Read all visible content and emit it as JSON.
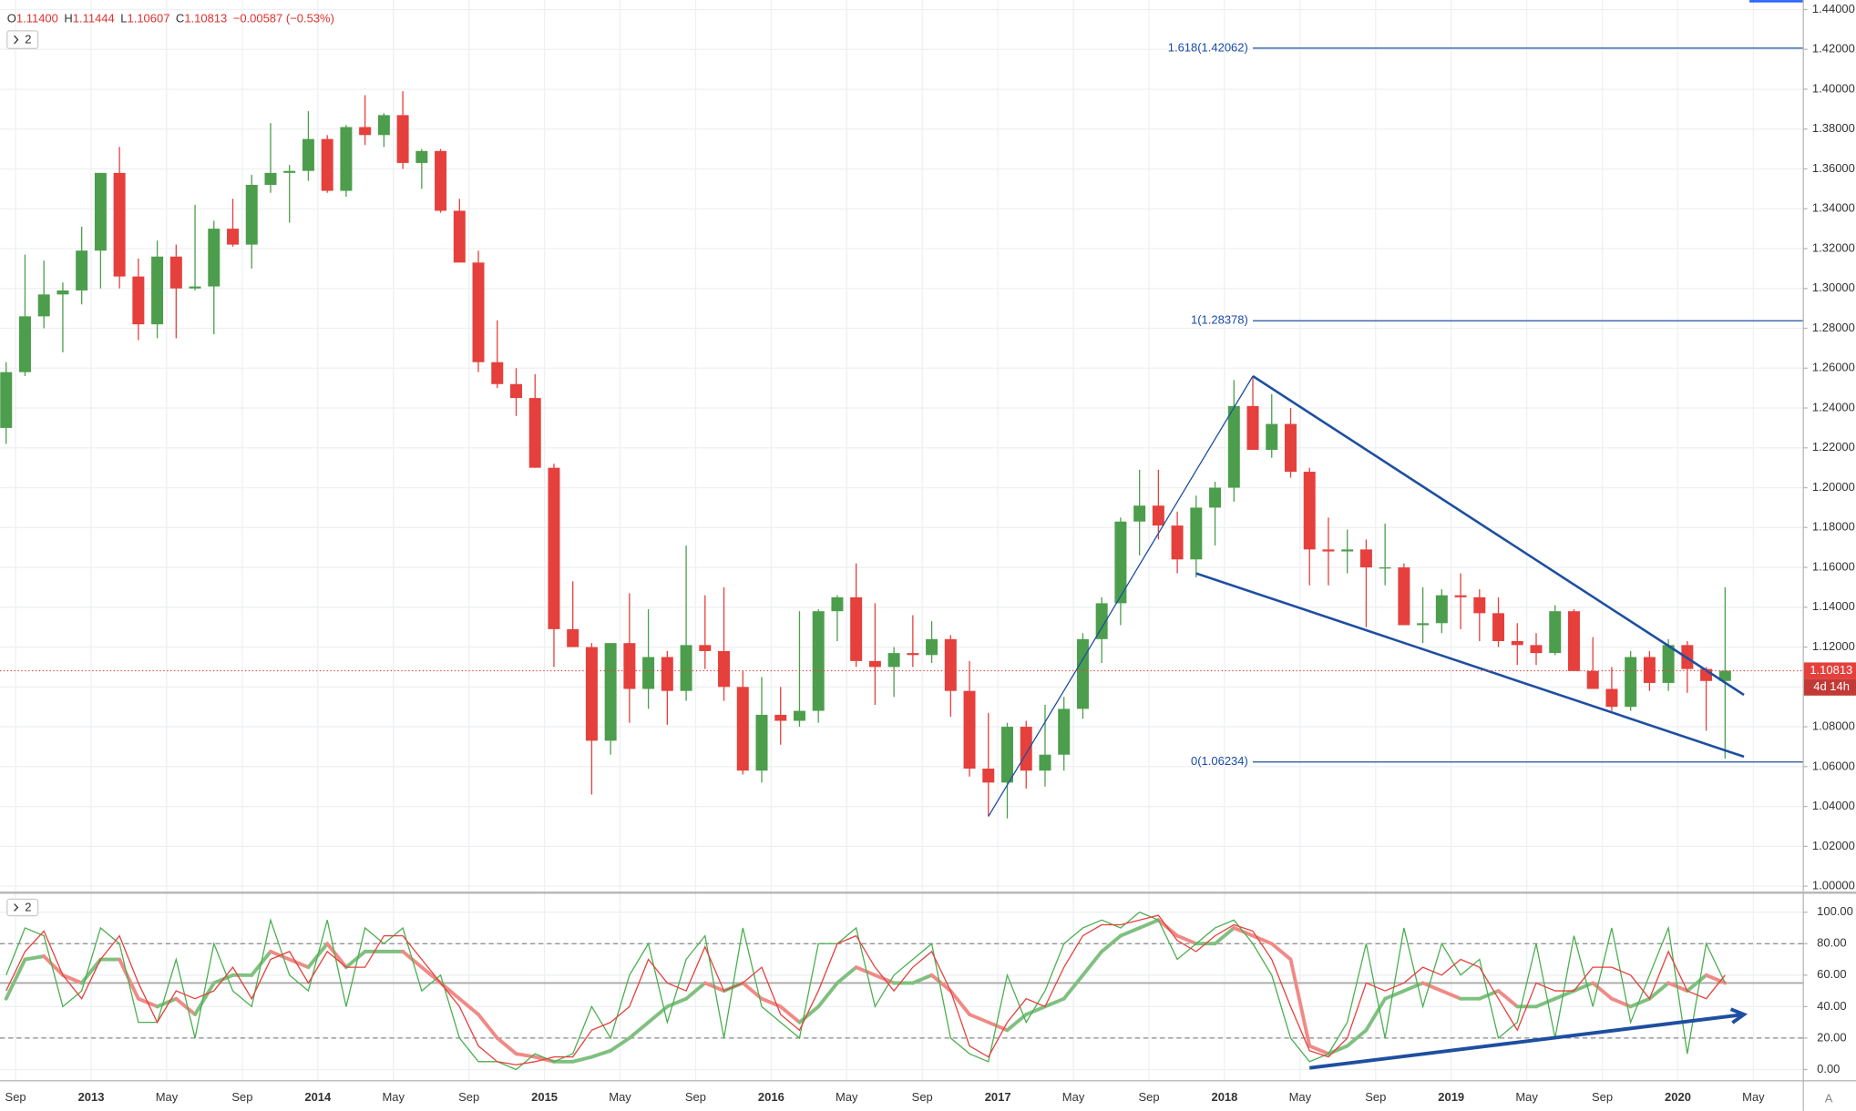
{
  "chart_data": [
    {
      "type": "candlestick",
      "header": [
        [
          "O",
          "1.11400"
        ],
        [
          "H",
          "1.11444"
        ],
        [
          "L",
          "1.10607"
        ],
        [
          "C",
          "1.10813"
        ]
      ],
      "header_change": "−0.00587 (−0.53%)",
      "pane_label": "2",
      "x": [
        "2012-08",
        "2012-09",
        "2012-10",
        "2012-11",
        "2012-12",
        "2013-01",
        "2013-02",
        "2013-03",
        "2013-04",
        "2013-05",
        "2013-06",
        "2013-07",
        "2013-08",
        "2013-09",
        "2013-10",
        "2013-11",
        "2013-12",
        "2014-01",
        "2014-02",
        "2014-03",
        "2014-04",
        "2014-05",
        "2014-06",
        "2014-07",
        "2014-08",
        "2014-09",
        "2014-10",
        "2014-11",
        "2014-12",
        "2015-01",
        "2015-02",
        "2015-03",
        "2015-04",
        "2015-05",
        "2015-06",
        "2015-07",
        "2015-08",
        "2015-09",
        "2015-10",
        "2015-11",
        "2015-12",
        "2016-01",
        "2016-02",
        "2016-03",
        "2016-04",
        "2016-05",
        "2016-06",
        "2016-07",
        "2016-08",
        "2016-09",
        "2016-10",
        "2016-11",
        "2016-12",
        "2017-01",
        "2017-02",
        "2017-03",
        "2017-04",
        "2017-05",
        "2017-06",
        "2017-07",
        "2017-08",
        "2017-09",
        "2017-10",
        "2017-11",
        "2017-12",
        "2018-01",
        "2018-02",
        "2018-03",
        "2018-04",
        "2018-05",
        "2018-06",
        "2018-07",
        "2018-08",
        "2018-09",
        "2018-10",
        "2018-11",
        "2018-12",
        "2019-01",
        "2019-02",
        "2019-03",
        "2019-04",
        "2019-05",
        "2019-06",
        "2019-07",
        "2019-08",
        "2019-09",
        "2019-10",
        "2019-11",
        "2019-12",
        "2020-01",
        "2020-02",
        "2020-03"
      ],
      "open": [
        1.23,
        1.258,
        1.286,
        1.297,
        1.299,
        1.319,
        1.358,
        1.306,
        1.282,
        1.316,
        1.3,
        1.301,
        1.33,
        1.322,
        1.352,
        1.358,
        1.359,
        1.375,
        1.349,
        1.381,
        1.377,
        1.387,
        1.363,
        1.369,
        1.339,
        1.313,
        1.263,
        1.252,
        1.245,
        1.21,
        1.129,
        1.12,
        1.073,
        1.122,
        1.099,
        1.115,
        1.098,
        1.121,
        1.118,
        1.1,
        1.058,
        1.086,
        1.083,
        1.088,
        1.138,
        1.145,
        1.113,
        1.11,
        1.117,
        1.116,
        1.124,
        1.098,
        1.059,
        1.052,
        1.08,
        1.058,
        1.066,
        1.089,
        1.124,
        1.142,
        1.183,
        1.191,
        1.181,
        1.164,
        1.19,
        1.2,
        1.241,
        1.219,
        1.232,
        1.208,
        1.169,
        1.168,
        1.169,
        1.16,
        1.16,
        1.131,
        1.132,
        1.146,
        1.145,
        1.137,
        1.123,
        1.121,
        1.117,
        1.138,
        1.108,
        1.099,
        1.09,
        1.115,
        1.102,
        1.121,
        1.109,
        1.103
      ],
      "high": [
        1.263,
        1.317,
        1.314,
        1.303,
        1.331,
        1.358,
        1.371,
        1.315,
        1.324,
        1.322,
        1.342,
        1.334,
        1.345,
        1.357,
        1.383,
        1.362,
        1.389,
        1.377,
        1.382,
        1.397,
        1.388,
        1.399,
        1.37,
        1.37,
        1.345,
        1.319,
        1.284,
        1.26,
        1.257,
        1.212,
        1.153,
        1.122,
        1.122,
        1.147,
        1.139,
        1.118,
        1.171,
        1.146,
        1.15,
        1.108,
        1.105,
        1.1,
        1.138,
        1.139,
        1.146,
        1.162,
        1.142,
        1.12,
        1.136,
        1.133,
        1.126,
        1.113,
        1.087,
        1.082,
        1.083,
        1.091,
        1.095,
        1.127,
        1.145,
        1.185,
        1.209,
        1.209,
        1.188,
        1.196,
        1.203,
        1.254,
        1.256,
        1.247,
        1.24,
        1.21,
        1.185,
        1.179,
        1.174,
        1.182,
        1.162,
        1.15,
        1.149,
        1.157,
        1.149,
        1.145,
        1.132,
        1.127,
        1.141,
        1.139,
        1.125,
        1.11,
        1.118,
        1.118,
        1.124,
        1.123,
        1.11,
        1.15
      ],
      "low": [
        1.222,
        1.256,
        1.28,
        1.268,
        1.292,
        1.3,
        1.3,
        1.274,
        1.275,
        1.275,
        1.299,
        1.277,
        1.321,
        1.31,
        1.348,
        1.333,
        1.354,
        1.348,
        1.346,
        1.372,
        1.371,
        1.36,
        1.35,
        1.338,
        1.315,
        1.258,
        1.25,
        1.236,
        1.21,
        1.11,
        1.12,
        1.046,
        1.066,
        1.082,
        1.089,
        1.081,
        1.093,
        1.109,
        1.093,
        1.056,
        1.052,
        1.071,
        1.08,
        1.082,
        1.123,
        1.11,
        1.091,
        1.095,
        1.11,
        1.112,
        1.085,
        1.055,
        1.035,
        1.034,
        1.049,
        1.05,
        1.058,
        1.084,
        1.112,
        1.131,
        1.166,
        1.174,
        1.157,
        1.155,
        1.171,
        1.193,
        1.22,
        1.215,
        1.205,
        1.151,
        1.151,
        1.157,
        1.13,
        1.151,
        1.134,
        1.122,
        1.127,
        1.129,
        1.123,
        1.12,
        1.111,
        1.111,
        1.116,
        1.11,
        1.103,
        1.088,
        1.088,
        1.098,
        1.098,
        1.097,
        1.078,
        1.064
      ],
      "close": [
        1.258,
        1.286,
        1.297,
        1.299,
        1.319,
        1.358,
        1.306,
        1.282,
        1.316,
        1.3,
        1.301,
        1.33,
        1.322,
        1.352,
        1.358,
        1.359,
        1.375,
        1.349,
        1.381,
        1.377,
        1.387,
        1.363,
        1.369,
        1.339,
        1.313,
        1.263,
        1.252,
        1.245,
        1.21,
        1.129,
        1.12,
        1.073,
        1.122,
        1.099,
        1.115,
        1.098,
        1.121,
        1.118,
        1.1,
        1.058,
        1.086,
        1.083,
        1.088,
        1.138,
        1.145,
        1.113,
        1.11,
        1.117,
        1.116,
        1.124,
        1.098,
        1.059,
        1.052,
        1.08,
        1.058,
        1.066,
        1.089,
        1.124,
        1.142,
        1.183,
        1.191,
        1.181,
        1.164,
        1.19,
        1.2,
        1.241,
        1.219,
        1.232,
        1.208,
        1.169,
        1.168,
        1.169,
        1.16,
        1.16,
        1.131,
        1.132,
        1.146,
        1.145,
        1.137,
        1.123,
        1.121,
        1.117,
        1.138,
        1.108,
        1.099,
        1.09,
        1.115,
        1.102,
        1.121,
        1.109,
        1.103,
        1.10813
      ],
      "up_color": "#4c9e4c",
      "down_color": "#e5403c",
      "ylim": [
        1.0,
        1.44
      ],
      "yticks": [
        {
          "value": 1.0,
          "label": "1.00000"
        },
        {
          "value": 1.02,
          "label": "1.02000"
        },
        {
          "value": 1.04,
          "label": "1.04000"
        },
        {
          "value": 1.06,
          "label": "1.06000"
        },
        {
          "value": 1.08,
          "label": "1.08000"
        },
        {
          "value": 1.1,
          "label": "1.10000"
        },
        {
          "value": 1.12,
          "label": "1.12000"
        },
        {
          "value": 1.14,
          "label": "1.14000"
        },
        {
          "value": 1.16,
          "label": "1.16000"
        },
        {
          "value": 1.18,
          "label": "1.18000"
        },
        {
          "value": 1.2,
          "label": "1.20000"
        },
        {
          "value": 1.22,
          "label": "1.22000"
        },
        {
          "value": 1.24,
          "label": "1.24000"
        },
        {
          "value": 1.26,
          "label": "1.26000"
        },
        {
          "value": 1.28,
          "label": "1.28000"
        },
        {
          "value": 1.3,
          "label": "1.30000"
        },
        {
          "value": 1.32,
          "label": "1.32000"
        },
        {
          "value": 1.34,
          "label": "1.34000"
        },
        {
          "value": 1.36,
          "label": "1.36000"
        },
        {
          "value": 1.38,
          "label": "1.38000"
        },
        {
          "value": 1.4,
          "label": "1.40000"
        },
        {
          "value": 1.42,
          "label": "1.42000"
        },
        {
          "value": 1.44,
          "label": "1.44000"
        }
      ],
      "grid": true,
      "last_price": {
        "value": 1.10813,
        "label": "1.10813"
      },
      "countdown": "4d 14h",
      "fib_levels": [
        {
          "value": 1.42062,
          "label": "1.618(1.42062)"
        },
        {
          "value": 1.28378,
          "label": "1(1.28378)"
        },
        {
          "value": 1.06234,
          "label": "0(1.06234)"
        }
      ],
      "fib_start": "2018-02",
      "trendlines": [
        {
          "x": [
            "2016-12",
            "2018-02"
          ],
          "y": [
            1.035,
            1.256
          ],
          "width": 1
        },
        {
          "x": [
            "2018-02",
            "2020-04"
          ],
          "y": [
            1.256,
            1.096
          ],
          "width": 2
        },
        {
          "x": [
            "2017-11",
            "2020-04"
          ],
          "y": [
            1.157,
            1.065
          ],
          "width": 2
        }
      ],
      "trendline_color": "#1e4fa0"
    },
    {
      "type": "oscillator",
      "pane_label": "2",
      "series": [
        {
          "name": "slow",
          "width": 3,
          "values": [
            45,
            70,
            72,
            60,
            55,
            70,
            70,
            45,
            40,
            45,
            35,
            55,
            60,
            60,
            75,
            70,
            65,
            80,
            65,
            75,
            75,
            75,
            65,
            55,
            45,
            35,
            20,
            10,
            8,
            5,
            5,
            8,
            12,
            20,
            30,
            40,
            45,
            55,
            50,
            55,
            45,
            40,
            30,
            40,
            55,
            65,
            60,
            55,
            55,
            60,
            50,
            35,
            30,
            25,
            35,
            40,
            45,
            60,
            75,
            85,
            90,
            95,
            85,
            80,
            80,
            90,
            85,
            80,
            70,
            15,
            10,
            15,
            25,
            45,
            50,
            55,
            50,
            45,
            45,
            50,
            40,
            40,
            45,
            50,
            55,
            45,
            40,
            45,
            55,
            50,
            60,
            55
          ]
        },
        {
          "name": "k",
          "width": 1,
          "color": "#4caf50",
          "values": [
            60,
            90,
            85,
            40,
            50,
            90,
            80,
            30,
            30,
            70,
            20,
            80,
            50,
            40,
            95,
            60,
            50,
            95,
            40,
            90,
            80,
            90,
            50,
            60,
            20,
            5,
            5,
            0,
            10,
            5,
            10,
            40,
            20,
            60,
            80,
            30,
            70,
            85,
            20,
            90,
            40,
            30,
            20,
            80,
            80,
            90,
            40,
            60,
            70,
            80,
            20,
            10,
            5,
            60,
            30,
            50,
            80,
            90,
            95,
            90,
            100,
            95,
            70,
            80,
            90,
            95,
            80,
            60,
            20,
            5,
            10,
            30,
            80,
            20,
            90,
            40,
            80,
            60,
            70,
            20,
            30,
            80,
            20,
            85,
            40,
            90,
            30,
            60,
            90,
            10,
            80,
            55
          ]
        },
        {
          "name": "d",
          "width": 1,
          "color": "#e5403c",
          "values": [
            50,
            75,
            88,
            60,
            45,
            70,
            85,
            55,
            30,
            50,
            45,
            50,
            65,
            45,
            70,
            75,
            55,
            75,
            65,
            65,
            85,
            85,
            70,
            55,
            40,
            15,
            5,
            3,
            5,
            8,
            8,
            25,
            30,
            40,
            70,
            55,
            50,
            78,
            50,
            55,
            65,
            35,
            25,
            50,
            80,
            85,
            65,
            50,
            65,
            75,
            50,
            15,
            8,
            30,
            45,
            40,
            65,
            85,
            92,
            92,
            95,
            98,
            82,
            75,
            85,
            92,
            88,
            70,
            40,
            12,
            8,
            20,
            55,
            50,
            55,
            65,
            60,
            70,
            65,
            45,
            25,
            55,
            50,
            50,
            65,
            65,
            60,
            45,
            75,
            50,
            45,
            60
          ]
        }
      ],
      "rise_color": "#7fc07f",
      "fall_color": "#f08a86",
      "ylim": [
        0,
        100
      ],
      "yticks": [
        {
          "value": 0,
          "label": "0.00"
        },
        {
          "value": 20,
          "label": "20.00"
        },
        {
          "value": 40,
          "label": "40.00"
        },
        {
          "value": 60,
          "label": "60.00"
        },
        {
          "value": 80,
          "label": "80.00"
        },
        {
          "value": 100,
          "label": "100.00"
        }
      ],
      "bands": [
        80,
        20
      ],
      "midline": 55,
      "trendline": {
        "x": [
          "2018-05",
          "2020-04"
        ],
        "y": [
          1,
          35
        ]
      },
      "xticks": [
        {
          "value": "2012-09",
          "label": "Sep"
        },
        {
          "value": "2013-01",
          "label": "2013"
        },
        {
          "value": "2013-05",
          "label": "May"
        },
        {
          "value": "2013-09",
          "label": "Sep"
        },
        {
          "value": "2014-01",
          "label": "2014"
        },
        {
          "value": "2014-05",
          "label": "May"
        },
        {
          "value": "2014-09",
          "label": "Sep"
        },
        {
          "value": "2015-01",
          "label": "2015"
        },
        {
          "value": "2015-05",
          "label": "May"
        },
        {
          "value": "2015-09",
          "label": "Sep"
        },
        {
          "value": "2016-01",
          "label": "2016"
        },
        {
          "value": "2016-05",
          "label": "May"
        },
        {
          "value": "2016-09",
          "label": "Sep"
        },
        {
          "value": "2017-01",
          "label": "2017"
        },
        {
          "value": "2017-05",
          "label": "May"
        },
        {
          "value": "2017-09",
          "label": "Sep"
        },
        {
          "value": "2018-01",
          "label": "2018"
        },
        {
          "value": "2018-05",
          "label": "May"
        },
        {
          "value": "2018-09",
          "label": "Sep"
        },
        {
          "value": "2019-01",
          "label": "2019"
        },
        {
          "value": "2019-05",
          "label": "May"
        },
        {
          "value": "2019-09",
          "label": "Sep"
        },
        {
          "value": "2020-01",
          "label": "2020"
        },
        {
          "value": "2020-05",
          "label": "May"
        }
      ],
      "corner_label": "A"
    }
  ]
}
